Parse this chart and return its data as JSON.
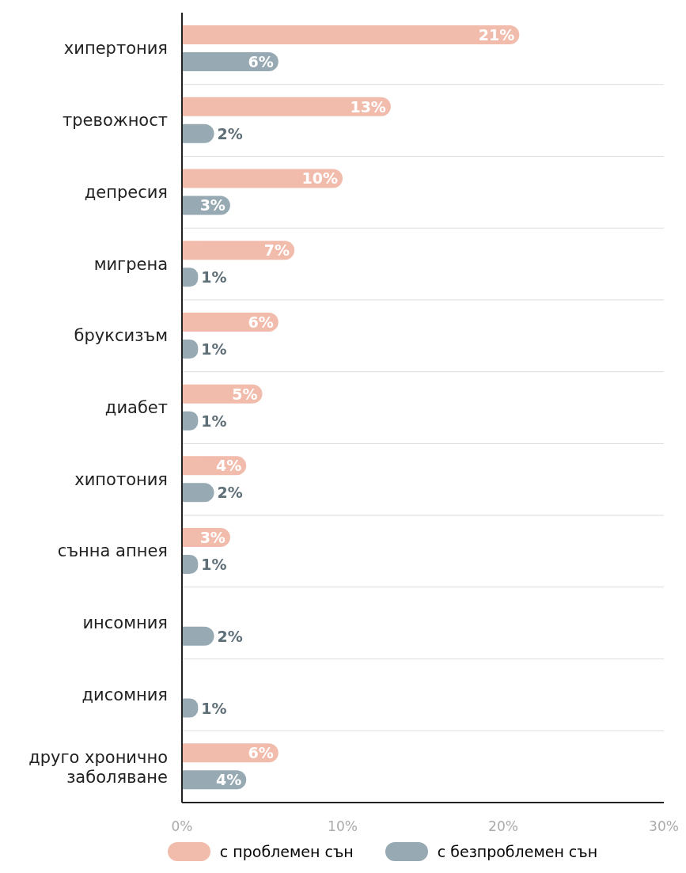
{
  "chart_data": {
    "type": "bar",
    "orientation": "horizontal",
    "categories": [
      "хипертония",
      "тревожност",
      "депресия",
      "мигрена",
      "бруксизъм",
      "диабет",
      "хипотония",
      "сънна апнея",
      "инсомния",
      "дисомния",
      "друго хронично заболяване"
    ],
    "series": [
      {
        "name": "с проблемен сън",
        "color": "#f2bcad",
        "values": [
          21,
          13,
          10,
          7,
          6,
          5,
          4,
          3,
          null,
          null,
          6
        ],
        "value_labels": [
          "21%",
          "13%",
          "10%",
          "7%",
          "6%",
          "5%",
          "4%",
          "3%",
          null,
          null,
          "6%"
        ]
      },
      {
        "name": "с безпроблемен сън",
        "color": "#97a9b3",
        "values": [
          6,
          2,
          3,
          1,
          1,
          1,
          2,
          1,
          2,
          1,
          4
        ],
        "value_labels": [
          "6%",
          "2%",
          "3%",
          "1%",
          "1%",
          "1%",
          "2%",
          "1%",
          "2%",
          "1%",
          "4%"
        ]
      }
    ],
    "xlim": [
      0,
      30
    ],
    "xticks": [
      {
        "value": 0,
        "label": "0%"
      },
      {
        "value": 10,
        "label": "10%"
      },
      {
        "value": 20,
        "label": "20%"
      },
      {
        "value": 30,
        "label": "30%"
      }
    ],
    "grid": "y",
    "legend": "bottom"
  }
}
